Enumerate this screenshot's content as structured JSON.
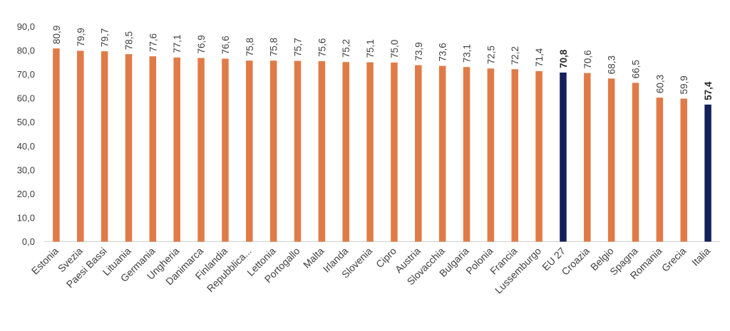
{
  "chart_data": {
    "type": "bar",
    "title": "",
    "xlabel": "",
    "ylabel": "",
    "ylim": [
      0,
      90
    ],
    "yticks": [
      "0,0",
      "10,0",
      "20,0",
      "30,0",
      "40,0",
      "50,0",
      "60,0",
      "70,0",
      "80,0",
      "90,0"
    ],
    "grid": false,
    "legend": "none",
    "colors": {
      "default": "#E07B47",
      "highlight": "#13205A",
      "axis": "#D0D0D0"
    },
    "categories": [
      "Estonia",
      "Svezia",
      "Paesi Bassi",
      "Lituania",
      "Germania",
      "Ungheria",
      "Danimarca",
      "Finlandia",
      "Repubblica...",
      "Lettonia",
      "Portogallo",
      "Malta",
      "Irlanda",
      "Slovenia",
      "Cipro",
      "Austria",
      "Slovacchia",
      "Bulgaria",
      "Polonia",
      "Francia",
      "Lussemburgo",
      "EU 27",
      "Croazia",
      "Belgio",
      "Spagna",
      "Romania",
      "Grecia",
      "Italia"
    ],
    "values": [
      80.9,
      79.9,
      79.7,
      78.5,
      77.6,
      77.1,
      76.9,
      76.6,
      75.8,
      75.8,
      75.7,
      75.6,
      75.2,
      75.1,
      75.0,
      73.9,
      73.6,
      73.1,
      72.5,
      72.2,
      71.4,
      70.8,
      70.6,
      68.3,
      66.5,
      60.3,
      59.9,
      57.4
    ],
    "value_labels": [
      "80,9",
      "79,9",
      "79,7",
      "78,5",
      "77,6",
      "77,1",
      "76,9",
      "76,6",
      "75,8",
      "75,8",
      "75,7",
      "75,6",
      "75,2",
      "75,1",
      "75,0",
      "73,9",
      "73,6",
      "73,1",
      "72,5",
      "72,2",
      "71,4",
      "70,8",
      "70,6",
      "68,3",
      "66,5",
      "60,3",
      "59,9",
      "57,4"
    ],
    "highlighted": [
      "EU 27",
      "Italia"
    ]
  }
}
